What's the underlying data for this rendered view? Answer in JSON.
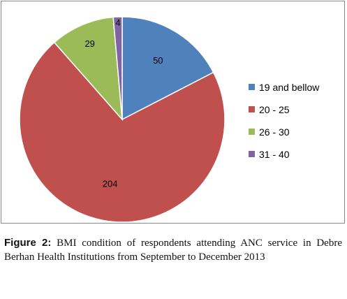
{
  "chart_data": {
    "type": "pie",
    "categories": [
      "19 and bellow",
      "20 - 25",
      "26 - 30",
      "31 - 40"
    ],
    "values": [
      50,
      204,
      29,
      4
    ],
    "colors": [
      "#4f81bd",
      "#c0504d",
      "#9bbb59",
      "#8064a2"
    ],
    "start": "12 o'clock",
    "direction": "clockwise",
    "legend_position": "right"
  },
  "caption": {
    "label": "Figure 2:",
    "text": " BMI condition of respondents attending ANC service in Debre Berhan Health Institutions from September to December 2013"
  }
}
